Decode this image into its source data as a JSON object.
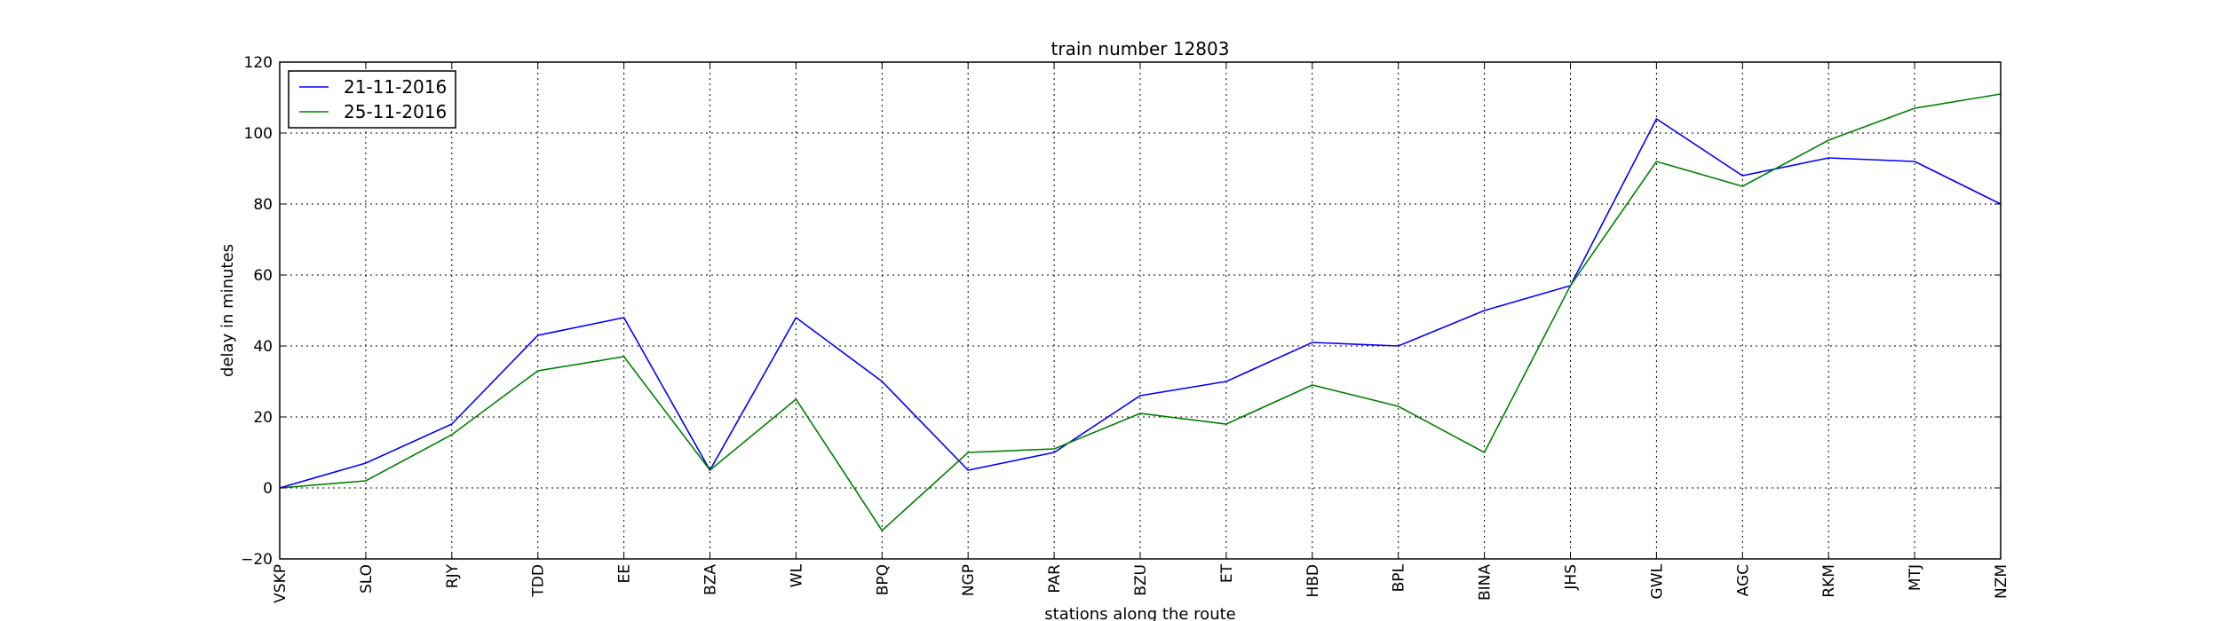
{
  "chart_data": {
    "type": "line",
    "title": "train number 12803",
    "xlabel": "stations along the route",
    "ylabel": "delay in minutes",
    "categories": [
      "VSKP",
      "SLO",
      "RJY",
      "TDD",
      "EE",
      "BZA",
      "WL",
      "BPQ",
      "NGP",
      "PAR",
      "BZU",
      "ET",
      "HBD",
      "BPL",
      "BINA",
      "JHS",
      "GWL",
      "AGC",
      "RKM",
      "MTJ",
      "NZM"
    ],
    "ylim": [
      -20,
      120
    ],
    "yticks": [
      -20,
      0,
      20,
      40,
      60,
      80,
      100,
      120
    ],
    "grid": true,
    "legend_position": "top-left",
    "series": [
      {
        "name": "21-11-2016",
        "color": "#0000ff",
        "values": [
          0,
          7,
          18,
          43,
          48,
          5,
          48,
          30,
          5,
          10,
          26,
          30,
          41,
          40,
          50,
          57,
          104,
          88,
          93,
          92,
          80
        ]
      },
      {
        "name": "25-11-2016",
        "color": "#008000",
        "values": [
          0,
          2,
          15,
          33,
          37,
          5,
          25,
          -12,
          10,
          11,
          21,
          18,
          29,
          23,
          10,
          57,
          92,
          85,
          98,
          107,
          111
        ]
      }
    ]
  }
}
